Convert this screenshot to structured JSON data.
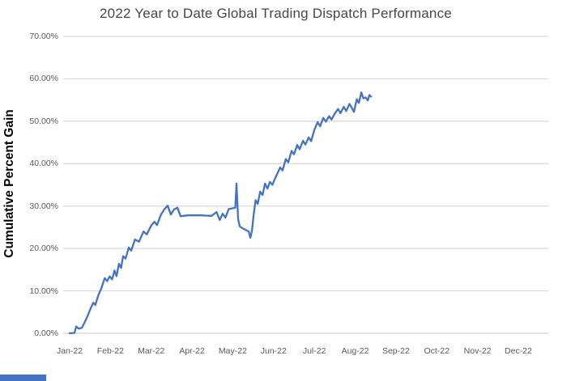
{
  "chart": {
    "line_color": "#4472C4",
    "gridline_color": "#D9D9D9",
    "axis_line_color": "#D0D0D0",
    "tick_label_color": "#595959",
    "accent_bar_color": "#4472C4"
  },
  "chart_data": {
    "type": "line",
    "title": "2022 Year to Date Global Trading Dispatch Performance",
    "xlabel": "",
    "ylabel": "Cumulative Percent Gain",
    "ylim": [
      0,
      70
    ],
    "y_tick_step": 10,
    "y_tick_labels": [
      "0.00%",
      "10.00%",
      "20.00%",
      "30.00%",
      "40.00%",
      "50.00%",
      "60.00%",
      "70.00%"
    ],
    "x_tick_labels": [
      "Jan-22",
      "Feb-22",
      "Mar-22",
      "Apr-22",
      "May-22",
      "Jun-22",
      "Jul-22",
      "Aug-22",
      "Sep-22",
      "Oct-22",
      "Nov-22",
      "Dec-22"
    ],
    "grid": "horizontal",
    "legend": "none",
    "x_unit": "month-index (0 = Jan-22)",
    "y_unit": "cumulative percent gain",
    "series": [
      {
        "name": "Cumulative Percent Gain",
        "points": [
          [
            0.0,
            0.0
          ],
          [
            0.12,
            0.1
          ],
          [
            0.16,
            1.6
          ],
          [
            0.22,
            1.1
          ],
          [
            0.3,
            1.3
          ],
          [
            0.36,
            2.4
          ],
          [
            0.44,
            4.1
          ],
          [
            0.52,
            6.0
          ],
          [
            0.58,
            7.2
          ],
          [
            0.63,
            6.7
          ],
          [
            0.7,
            8.9
          ],
          [
            0.78,
            10.7
          ],
          [
            0.86,
            13.0
          ],
          [
            0.92,
            12.3
          ],
          [
            0.98,
            13.4
          ],
          [
            1.04,
            12.7
          ],
          [
            1.1,
            14.8
          ],
          [
            1.15,
            13.5
          ],
          [
            1.21,
            16.4
          ],
          [
            1.26,
            15.4
          ],
          [
            1.31,
            18.2
          ],
          [
            1.37,
            17.6
          ],
          [
            1.45,
            20.2
          ],
          [
            1.51,
            19.5
          ],
          [
            1.6,
            22.1
          ],
          [
            1.7,
            21.6
          ],
          [
            1.81,
            24.0
          ],
          [
            1.89,
            23.3
          ],
          [
            2.0,
            25.4
          ],
          [
            2.08,
            26.3
          ],
          [
            2.14,
            25.5
          ],
          [
            2.24,
            28.0
          ],
          [
            2.32,
            29.2
          ],
          [
            2.4,
            30.1
          ],
          [
            2.48,
            28.0
          ],
          [
            2.56,
            29.2
          ],
          [
            2.64,
            29.6
          ],
          [
            2.72,
            27.6
          ],
          [
            2.9,
            27.8
          ],
          [
            3.2,
            27.8
          ],
          [
            3.48,
            27.7
          ],
          [
            3.6,
            28.6
          ],
          [
            3.68,
            26.7
          ],
          [
            3.75,
            28.2
          ],
          [
            3.82,
            27.3
          ],
          [
            3.9,
            29.3
          ],
          [
            4.02,
            29.5
          ],
          [
            4.06,
            29.6
          ],
          [
            4.09,
            35.3
          ],
          [
            4.13,
            26.9
          ],
          [
            4.17,
            25.2
          ],
          [
            4.25,
            24.7
          ],
          [
            4.33,
            24.3
          ],
          [
            4.39,
            24.0
          ],
          [
            4.43,
            22.5
          ],
          [
            4.47,
            24.2
          ],
          [
            4.51,
            27.8
          ],
          [
            4.56,
            31.4
          ],
          [
            4.61,
            30.5
          ],
          [
            4.67,
            33.4
          ],
          [
            4.73,
            32.6
          ],
          [
            4.79,
            35.3
          ],
          [
            4.85,
            34.1
          ],
          [
            4.91,
            35.7
          ],
          [
            4.97,
            35.0
          ],
          [
            5.03,
            36.4
          ],
          [
            5.09,
            37.6
          ],
          [
            5.16,
            39.1
          ],
          [
            5.22,
            38.4
          ],
          [
            5.3,
            41.1
          ],
          [
            5.36,
            40.3
          ],
          [
            5.44,
            43.0
          ],
          [
            5.5,
            42.2
          ],
          [
            5.58,
            44.4
          ],
          [
            5.64,
            43.4
          ],
          [
            5.72,
            45.4
          ],
          [
            5.78,
            44.5
          ],
          [
            5.86,
            46.2
          ],
          [
            5.92,
            45.3
          ],
          [
            6.0,
            48.0
          ],
          [
            6.08,
            49.8
          ],
          [
            6.14,
            48.8
          ],
          [
            6.22,
            50.8
          ],
          [
            6.28,
            49.9
          ],
          [
            6.36,
            51.2
          ],
          [
            6.42,
            50.4
          ],
          [
            6.5,
            51.8
          ],
          [
            6.58,
            52.9
          ],
          [
            6.64,
            51.9
          ],
          [
            6.72,
            53.4
          ],
          [
            6.78,
            52.4
          ],
          [
            6.86,
            54.1
          ],
          [
            6.92,
            53.1
          ],
          [
            6.97,
            52.2
          ],
          [
            7.04,
            55.2
          ],
          [
            7.09,
            54.3
          ],
          [
            7.15,
            56.8
          ],
          [
            7.2,
            55.4
          ],
          [
            7.26,
            55.6
          ],
          [
            7.31,
            54.9
          ],
          [
            7.35,
            56.2
          ],
          [
            7.39,
            55.8
          ]
        ]
      }
    ]
  }
}
